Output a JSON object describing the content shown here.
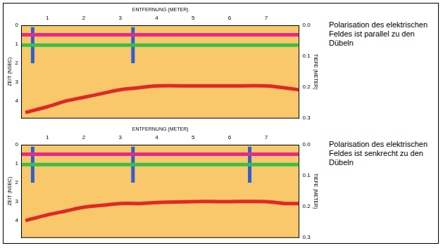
{
  "chart_data": [
    {
      "type": "line",
      "annotation": "Polarisation des elektrischen Feldes ist parallel zu den Dübeln",
      "x_label": "ENTFERNUNG (METER)",
      "y_label": "ZEIT (NSEC)",
      "y2_label": "TIEFE (METER)",
      "xlim": [
        0.3,
        7.9
      ],
      "xticks": [
        1,
        2,
        3,
        4,
        5,
        6,
        7
      ],
      "ylim": [
        0,
        4.9
      ],
      "yticks": [
        0,
        1,
        2,
        3,
        4
      ],
      "y2lim": [
        0,
        0.3
      ],
      "y2ticks": [
        {
          "value": 0,
          "label": "0.0"
        },
        0.1,
        0.2,
        0.3
      ],
      "grid": false,
      "series": [
        {
          "color": "#e8288c",
          "x": [
            0.3,
            7.9
          ],
          "values": [
            0.5,
            0.5
          ]
        },
        {
          "color": "#38c048",
          "x": [
            0.3,
            7.9
          ],
          "values": [
            1.05,
            1.05
          ]
        },
        {
          "color": "#e02828",
          "x": [
            0.4,
            1,
            1.5,
            2,
            2.5,
            3,
            3.5,
            4,
            5,
            6,
            7,
            7.5,
            7.9
          ],
          "values": [
            4.6,
            4.3,
            4.0,
            3.8,
            3.6,
            3.4,
            3.3,
            3.2,
            3.2,
            3.2,
            3.2,
            3.3,
            3.4
          ]
        },
        {
          "color": "#3060d0",
          "x": [
            0.6,
            0.6
          ],
          "values": [
            0.1,
            2.0
          ]
        },
        {
          "color": "#3060d0",
          "x": [
            3.35,
            3.35
          ],
          "values": [
            0.1,
            2.0
          ]
        }
      ]
    },
    {
      "type": "line",
      "annotation": "Polarisation des elektrischen Feldes ist senkrecht zu den Dübeln",
      "x_label": "ENTFERNUNG (METER)",
      "y_label": "ZEIT (NSEC)",
      "y2_label": "TIEFE (METER)",
      "xlim": [
        0.3,
        7.9
      ],
      "xticks": [
        1,
        2,
        3,
        4,
        5,
        6,
        7
      ],
      "ylim": [
        0,
        4.9
      ],
      "yticks": [
        0,
        1,
        2,
        3,
        4
      ],
      "y2lim": [
        0,
        0.3
      ],
      "y2ticks": [
        {
          "value": 0,
          "label": "0.0"
        },
        0.1,
        0.2,
        0.3
      ],
      "grid": false,
      "series": [
        {
          "color": "#e8288c",
          "x": [
            0.3,
            7.9
          ],
          "values": [
            0.5,
            0.5
          ]
        },
        {
          "color": "#38c048",
          "x": [
            0.3,
            7.9
          ],
          "values": [
            1.05,
            1.05
          ]
        },
        {
          "color": "#e02828",
          "x": [
            0.4,
            1,
            1.5,
            2,
            2.5,
            3,
            3.5,
            4,
            5,
            6,
            7,
            7.5,
            7.9
          ],
          "values": [
            4.0,
            3.7,
            3.5,
            3.3,
            3.2,
            3.1,
            3.1,
            3.05,
            3.0,
            3.0,
            3.0,
            3.1,
            3.1
          ]
        },
        {
          "color": "#3060d0",
          "x": [
            0.6,
            0.6
          ],
          "values": [
            0.1,
            2.0
          ]
        },
        {
          "color": "#3060d0",
          "x": [
            3.35,
            3.35
          ],
          "values": [
            0.1,
            2.0
          ]
        },
        {
          "color": "#3060d0",
          "x": [
            6.55,
            6.55
          ],
          "values": [
            0.1,
            2.0
          ]
        }
      ]
    }
  ]
}
